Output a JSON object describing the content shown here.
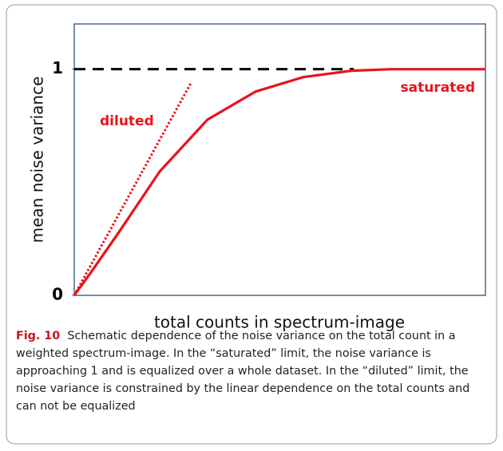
{
  "chart_data": {
    "type": "line",
    "ylabel": "mean noise variance",
    "xlabel": "total counts in spectrum-image",
    "xlim": [
      0,
      1
    ],
    "ylim": [
      0,
      1.2
    ],
    "yticks": [
      0,
      1
    ],
    "series": [
      {
        "color": "#000000",
        "dash": "dashed",
        "x": [
          0,
          0.68
        ],
        "values": [
          1,
          1
        ]
      },
      {
        "color": "#e8141c",
        "dash": "dotted",
        "x": [
          0,
          0.285
        ],
        "values": [
          0,
          0.943
        ]
      },
      {
        "color": "#e8141c",
        "dash": "solid",
        "x": [
          0,
          0.04,
          0.11,
          0.208,
          0.324,
          0.441,
          0.557,
          0.674,
          0.771,
          1
        ],
        "values": [
          0,
          0.1,
          0.283,
          0.548,
          0.777,
          0.901,
          0.965,
          0.993,
          1,
          1
        ]
      }
    ],
    "annotations": [
      "diluted",
      "saturated"
    ]
  },
  "caption": {
    "label": "Fig. 10",
    "text": "Schematic dependence of the noise variance on the total count in a weighted spectrum-image. In the “saturated” limit, the noise variance is approaching 1 and is equalized over a whole dataset. In the “diluted” limit, the noise variance is constrained by the linear dependence on the total counts and can not be equalized"
  }
}
